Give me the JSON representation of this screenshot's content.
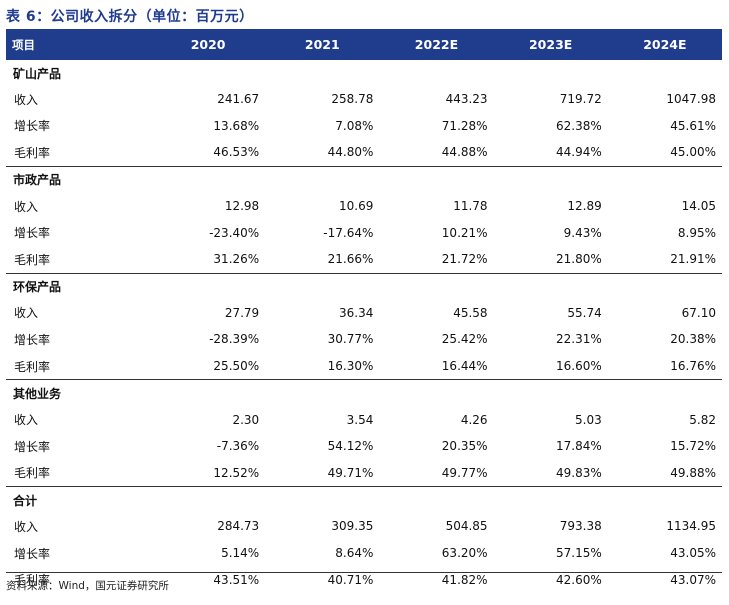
{
  "title": "表 6：公司收入拆分（单位：百万元）",
  "header": {
    "label": "项目",
    "years": [
      "2020",
      "2021",
      "2022E",
      "2023E",
      "2024E"
    ]
  },
  "sections": [
    {
      "name": "矿山产品",
      "rows": [
        {
          "label": "收入",
          "values": [
            "241.67",
            "258.78",
            "443.23",
            "719.72",
            "1047.98"
          ]
        },
        {
          "label": "增长率",
          "values": [
            "13.68%",
            "7.08%",
            "71.28%",
            "62.38%",
            "45.61%"
          ]
        },
        {
          "label": "毛利率",
          "values": [
            "46.53%",
            "44.80%",
            "44.88%",
            "44.94%",
            "45.00%"
          ]
        }
      ]
    },
    {
      "name": "市政产品",
      "rows": [
        {
          "label": "收入",
          "values": [
            "12.98",
            "10.69",
            "11.78",
            "12.89",
            "14.05"
          ]
        },
        {
          "label": "增长率",
          "values": [
            "-23.40%",
            "-17.64%",
            "10.21%",
            "9.43%",
            "8.95%"
          ]
        },
        {
          "label": "毛利率",
          "values": [
            "31.26%",
            "21.66%",
            "21.72%",
            "21.80%",
            "21.91%"
          ]
        }
      ]
    },
    {
      "name": "环保产品",
      "rows": [
        {
          "label": "收入",
          "values": [
            "27.79",
            "36.34",
            "45.58",
            "55.74",
            "67.10"
          ]
        },
        {
          "label": "增长率",
          "values": [
            "-28.39%",
            "30.77%",
            "25.42%",
            "22.31%",
            "20.38%"
          ]
        },
        {
          "label": "毛利率",
          "values": [
            "25.50%",
            "16.30%",
            "16.44%",
            "16.60%",
            "16.76%"
          ]
        }
      ]
    },
    {
      "name": "其他业务",
      "rows": [
        {
          "label": "收入",
          "values": [
            "2.30",
            "3.54",
            "4.26",
            "5.03",
            "5.82"
          ]
        },
        {
          "label": "增长率",
          "values": [
            "-7.36%",
            "54.12%",
            "20.35%",
            "17.84%",
            "15.72%"
          ]
        },
        {
          "label": "毛利率",
          "values": [
            "12.52%",
            "49.71%",
            "49.77%",
            "49.83%",
            "49.88%"
          ]
        }
      ]
    },
    {
      "name": "合计",
      "rows": [
        {
          "label": "收入",
          "values": [
            "284.73",
            "309.35",
            "504.85",
            "793.38",
            "1134.95"
          ]
        },
        {
          "label": "增长率",
          "values": [
            "5.14%",
            "8.64%",
            "63.20%",
            "57.15%",
            "43.05%"
          ]
        },
        {
          "label": "毛利率",
          "values": [
            "43.51%",
            "40.71%",
            "41.82%",
            "42.60%",
            "43.07%"
          ]
        }
      ]
    }
  ],
  "source": "资料来源：Wind，国元证券研究所",
  "colors": {
    "header_bg": "#1f3d8c",
    "title": "#1f3b8f"
  }
}
